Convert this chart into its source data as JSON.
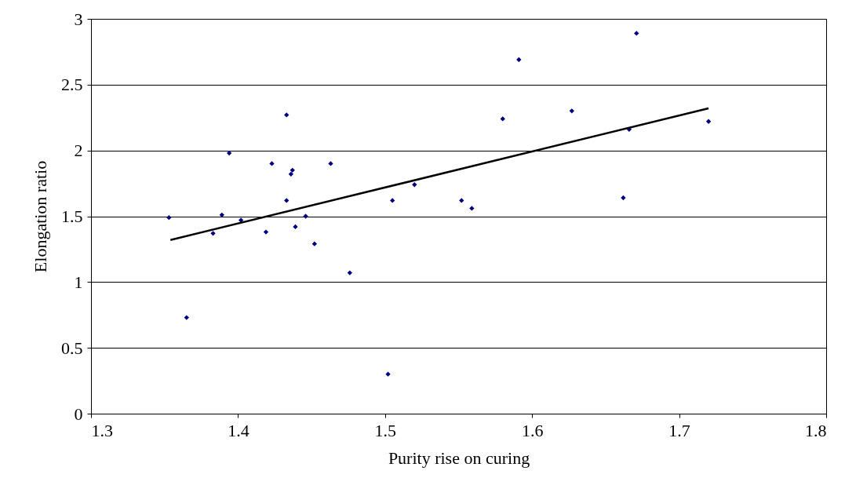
{
  "chart_data": {
    "type": "scatter",
    "xlabel": "Purity rise on curing",
    "ylabel": "Elongation ratio",
    "xlim": [
      1.3,
      1.8
    ],
    "xticks": [
      1.3,
      1.4,
      1.5,
      1.6,
      1.7,
      1.8
    ],
    "ylim": [
      0,
      3
    ],
    "yticks": [
      0,
      0.5,
      1,
      1.5,
      2,
      2.5,
      3
    ],
    "grid": "y",
    "marker": "diamond",
    "series": [
      {
        "color": "#000080",
        "x": [
          1.353,
          1.365,
          1.383,
          1.389,
          1.394,
          1.402,
          1.419,
          1.423,
          1.433,
          1.433,
          1.436,
          1.437,
          1.439,
          1.446,
          1.452,
          1.463,
          1.476,
          1.502,
          1.505,
          1.52,
          1.552,
          1.559,
          1.58,
          1.591,
          1.627,
          1.662,
          1.666,
          1.671,
          1.72
        ],
        "values": [
          1.49,
          0.73,
          1.37,
          1.51,
          1.98,
          1.47,
          1.38,
          1.9,
          2.27,
          1.62,
          1.82,
          1.85,
          1.42,
          1.5,
          1.29,
          1.9,
          1.07,
          0.3,
          1.62,
          1.74,
          1.62,
          1.56,
          2.24,
          2.69,
          2.3,
          1.64,
          2.16,
          2.89,
          2.22
        ]
      },
      {
        "type": "line",
        "color": "#000000",
        "marker": "none",
        "line_style": "solid",
        "x": [
          1.354,
          1.72
        ],
        "values": [
          1.32,
          2.32
        ]
      }
    ]
  }
}
